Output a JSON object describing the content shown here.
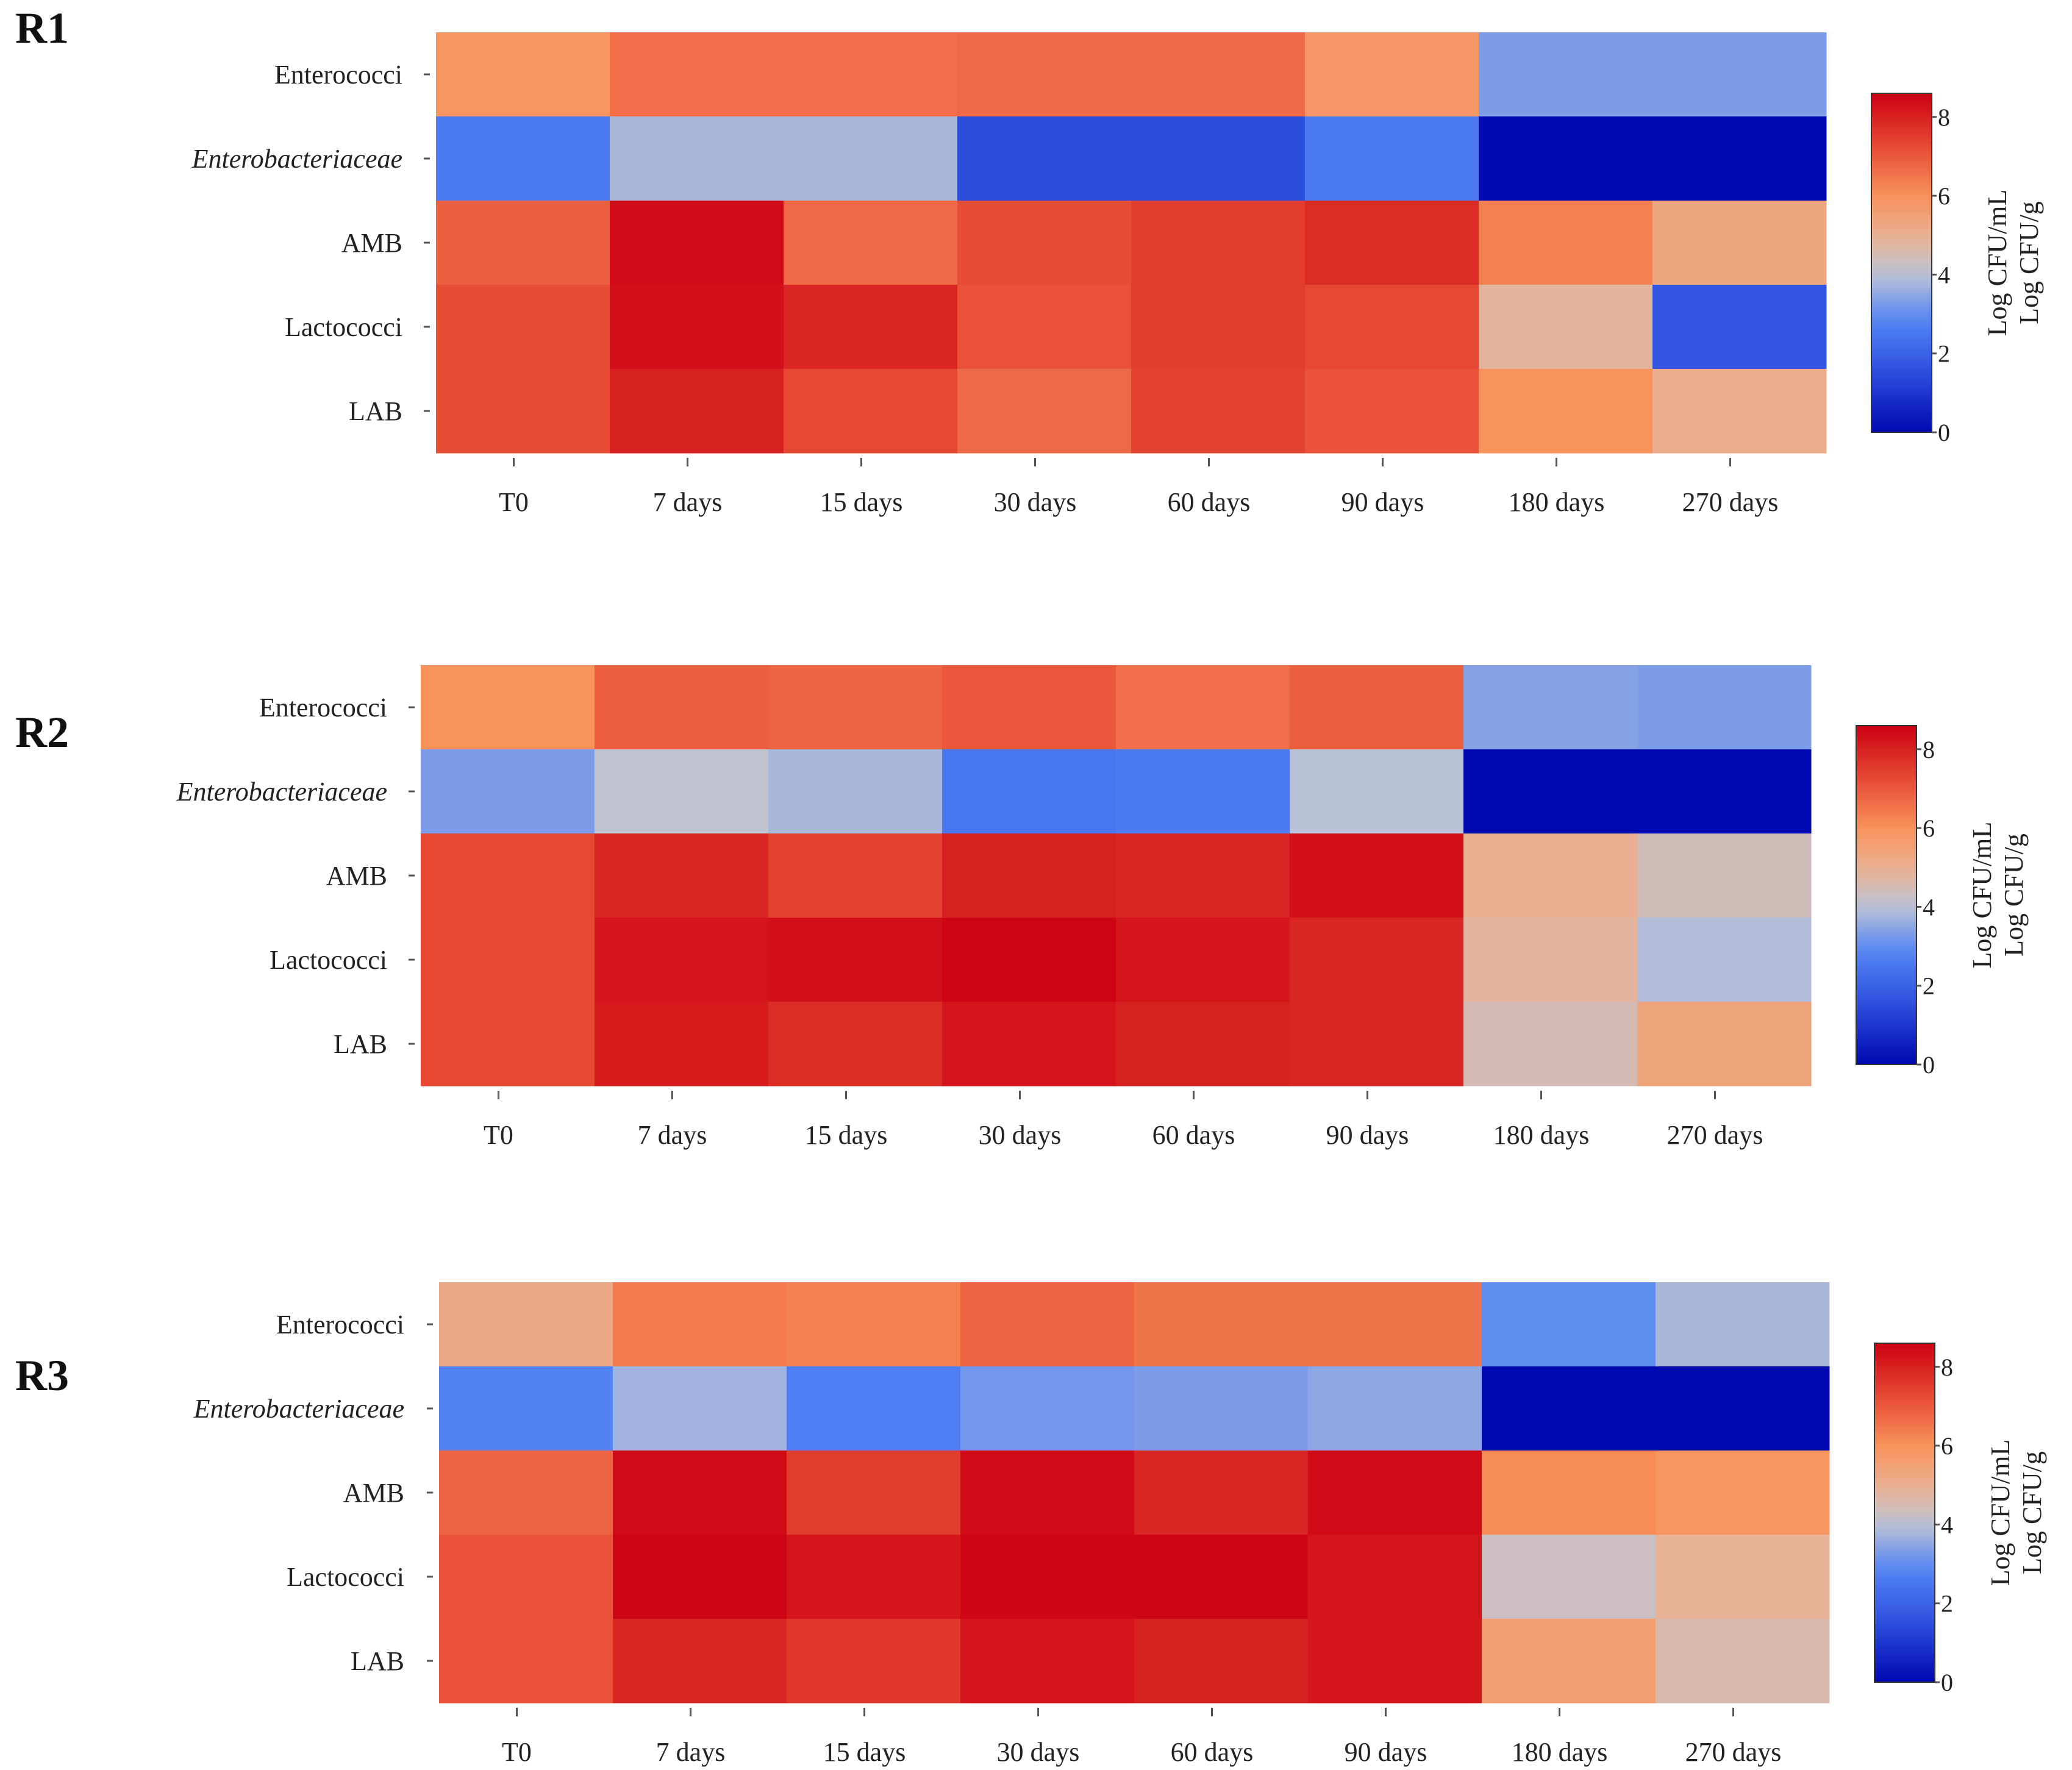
{
  "chart_data": [
    {
      "type": "heatmap",
      "title": "R1",
      "rows": [
        "Enterococci",
        "Enterobacteriaceae",
        "AMB",
        "Lactococci",
        "LAB"
      ],
      "italic_rows": [
        "Enterobacteriaceae"
      ],
      "columns": [
        "T0",
        "7 days",
        "15 days",
        "30 days",
        "60 days",
        "90 days",
        "180 days",
        "270 days"
      ],
      "values": [
        [
          5.9,
          6.6,
          6.6,
          6.7,
          6.7,
          5.8,
          3.3,
          3.3
        ],
        [
          2.6,
          3.8,
          3.8,
          1.5,
          1.5,
          2.6,
          0.0,
          0.0
        ],
        [
          6.9,
          8.4,
          6.7,
          7.2,
          7.5,
          7.8,
          6.3,
          5.3
        ],
        [
          7.2,
          8.3,
          7.9,
          7.1,
          7.5,
          7.3,
          4.8,
          1.7
        ],
        [
          7.2,
          8.0,
          7.3,
          6.7,
          7.4,
          7.1,
          6.0,
          5.1
        ]
      ],
      "colorbar": {
        "min": 0,
        "max": 8.6,
        "ticks": [
          "0",
          "2",
          "4",
          "6",
          "8"
        ],
        "label_lines": [
          "Log CFU/mL",
          "Log CFU/g"
        ]
      }
    },
    {
      "type": "heatmap",
      "title": "R2",
      "rows": [
        "Enterococci",
        "Enterobacteriaceae",
        "AMB",
        "Lactococci",
        "LAB"
      ],
      "italic_rows": [
        "Enterobacteriaceae"
      ],
      "columns": [
        "T0",
        "7 days",
        "15 days",
        "30 days",
        "60 days",
        "90 days",
        "180 days",
        "270 days"
      ],
      "values": [
        [
          6.0,
          6.9,
          6.8,
          7.0,
          6.6,
          6.9,
          3.4,
          3.3
        ],
        [
          3.3,
          4.1,
          3.8,
          2.5,
          2.6,
          4.0,
          0.0,
          0.0
        ],
        [
          7.3,
          7.9,
          7.4,
          8.0,
          7.9,
          8.3,
          5.0,
          4.4
        ],
        [
          7.3,
          8.2,
          8.3,
          8.5,
          8.2,
          7.9,
          4.8,
          3.9
        ],
        [
          7.3,
          8.1,
          7.8,
          8.2,
          8.0,
          7.9,
          4.5,
          5.4
        ]
      ],
      "colorbar": {
        "min": 0,
        "max": 8.6,
        "ticks": [
          "0",
          "2",
          "4",
          "6",
          "8"
        ],
        "label_lines": [
          "Log CFU/mL",
          "Log CFU/g"
        ]
      }
    },
    {
      "type": "heatmap",
      "title": "R3",
      "rows": [
        "Enterococci",
        "Enterobacteriaceae",
        "AMB",
        "Lactococci",
        "LAB"
      ],
      "italic_rows": [
        "Enterobacteriaceae"
      ],
      "columns": [
        "T0",
        "7 days",
        "15 days",
        "30 days",
        "60 days",
        "90 days",
        "180 days",
        "270 days"
      ],
      "values": [
        [
          5.2,
          6.4,
          6.3,
          6.8,
          6.5,
          6.5,
          3.0,
          3.8
        ],
        [
          2.8,
          3.7,
          2.7,
          3.2,
          3.3,
          3.5,
          0.0,
          0.0
        ],
        [
          6.8,
          8.4,
          7.5,
          8.4,
          7.9,
          8.4,
          6.1,
          5.9
        ],
        [
          7.1,
          8.5,
          8.2,
          8.5,
          8.5,
          8.2,
          4.3,
          4.9
        ],
        [
          7.1,
          7.9,
          7.6,
          8.2,
          8.0,
          8.2,
          5.6,
          4.6
        ]
      ],
      "colorbar": {
        "min": 0,
        "max": 8.6,
        "ticks": [
          "0",
          "2",
          "4",
          "6",
          "8"
        ],
        "label_lines": [
          "Log CFU/mL",
          "Log CFU/g"
        ]
      }
    }
  ]
}
